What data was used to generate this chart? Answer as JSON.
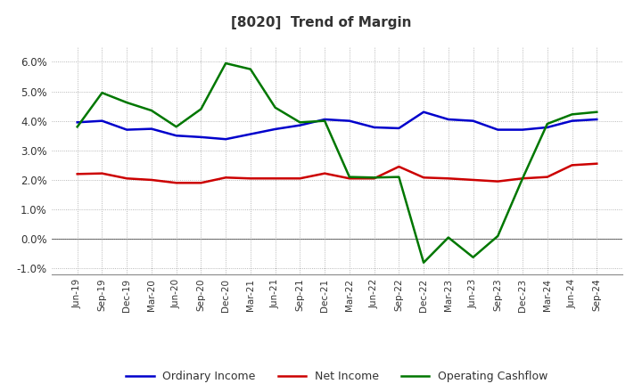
{
  "title": "[8020]  Trend of Margin",
  "x_labels": [
    "Jun-19",
    "Sep-19",
    "Dec-19",
    "Mar-20",
    "Jun-20",
    "Sep-20",
    "Dec-20",
    "Mar-21",
    "Jun-21",
    "Sep-21",
    "Dec-21",
    "Mar-22",
    "Jun-22",
    "Sep-22",
    "Dec-22",
    "Mar-23",
    "Jun-23",
    "Sep-23",
    "Dec-23",
    "Mar-24",
    "Jun-24",
    "Sep-24"
  ],
  "ordinary_income": [
    3.95,
    4.0,
    3.7,
    3.73,
    3.5,
    3.45,
    3.38,
    3.55,
    3.72,
    3.85,
    4.05,
    4.0,
    3.78,
    3.75,
    4.3,
    4.05,
    4.0,
    3.7,
    3.7,
    3.78,
    4.0,
    4.05
  ],
  "net_income": [
    2.2,
    2.22,
    2.05,
    2.0,
    1.9,
    1.9,
    2.08,
    2.05,
    2.05,
    2.05,
    2.22,
    2.05,
    2.05,
    2.45,
    2.08,
    2.05,
    2.0,
    1.95,
    2.05,
    2.1,
    2.5,
    2.55
  ],
  "operating_cashflow": [
    3.8,
    4.95,
    4.62,
    4.35,
    3.8,
    4.4,
    5.95,
    5.75,
    4.45,
    3.95,
    4.0,
    2.1,
    2.08,
    2.1,
    -0.8,
    0.05,
    -0.62,
    0.1,
    2.05,
    3.9,
    4.22,
    4.3
  ],
  "ylim": [
    -1.2,
    6.5
  ],
  "yticks": [
    -1.0,
    0.0,
    1.0,
    2.0,
    3.0,
    4.0,
    5.0,
    6.0
  ],
  "colors": {
    "ordinary_income": "#0000CC",
    "net_income": "#CC0000",
    "operating_cashflow": "#007700"
  },
  "bg_color": "#FFFFFF",
  "plot_bg_color": "#FFFFFF",
  "grid_color": "#999999",
  "line_width": 1.8,
  "legend_labels": [
    "Ordinary Income",
    "Net Income",
    "Operating Cashflow"
  ]
}
